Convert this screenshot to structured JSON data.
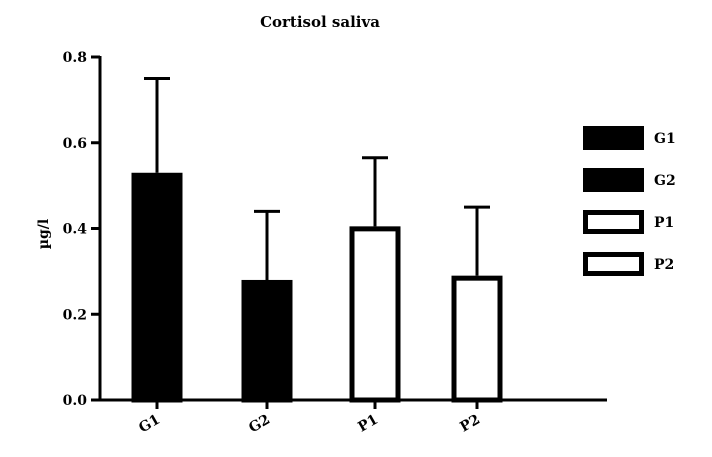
{
  "chart_data": {
    "type": "bar",
    "title": "Cortisol saliva",
    "xlabel": "",
    "ylabel": "µg/l",
    "ylim": [
      0,
      0.8
    ],
    "yticks": [
      "0.0",
      "0.2",
      "0.4",
      "0.6",
      "0.8"
    ],
    "ytick_values": [
      0,
      0.2,
      0.4,
      0.6,
      0.8
    ],
    "categories": [
      "G1",
      "G2",
      "P1",
      "P2"
    ],
    "values": [
      0.53,
      0.28,
      0.405,
      0.29
    ],
    "error_upper": [
      0.75,
      0.44,
      0.565,
      0.45
    ],
    "fills": [
      "#000000",
      "#000000",
      "#ffffff",
      "#ffffff"
    ],
    "edge_color": "#000000",
    "grid": false,
    "legend_position": "right",
    "legend": [
      {
        "label": "G1",
        "fill": "#000000"
      },
      {
        "label": "G2",
        "fill": "#000000"
      },
      {
        "label": "P1",
        "fill": "#ffffff"
      },
      {
        "label": "P2",
        "fill": "#ffffff"
      }
    ]
  }
}
